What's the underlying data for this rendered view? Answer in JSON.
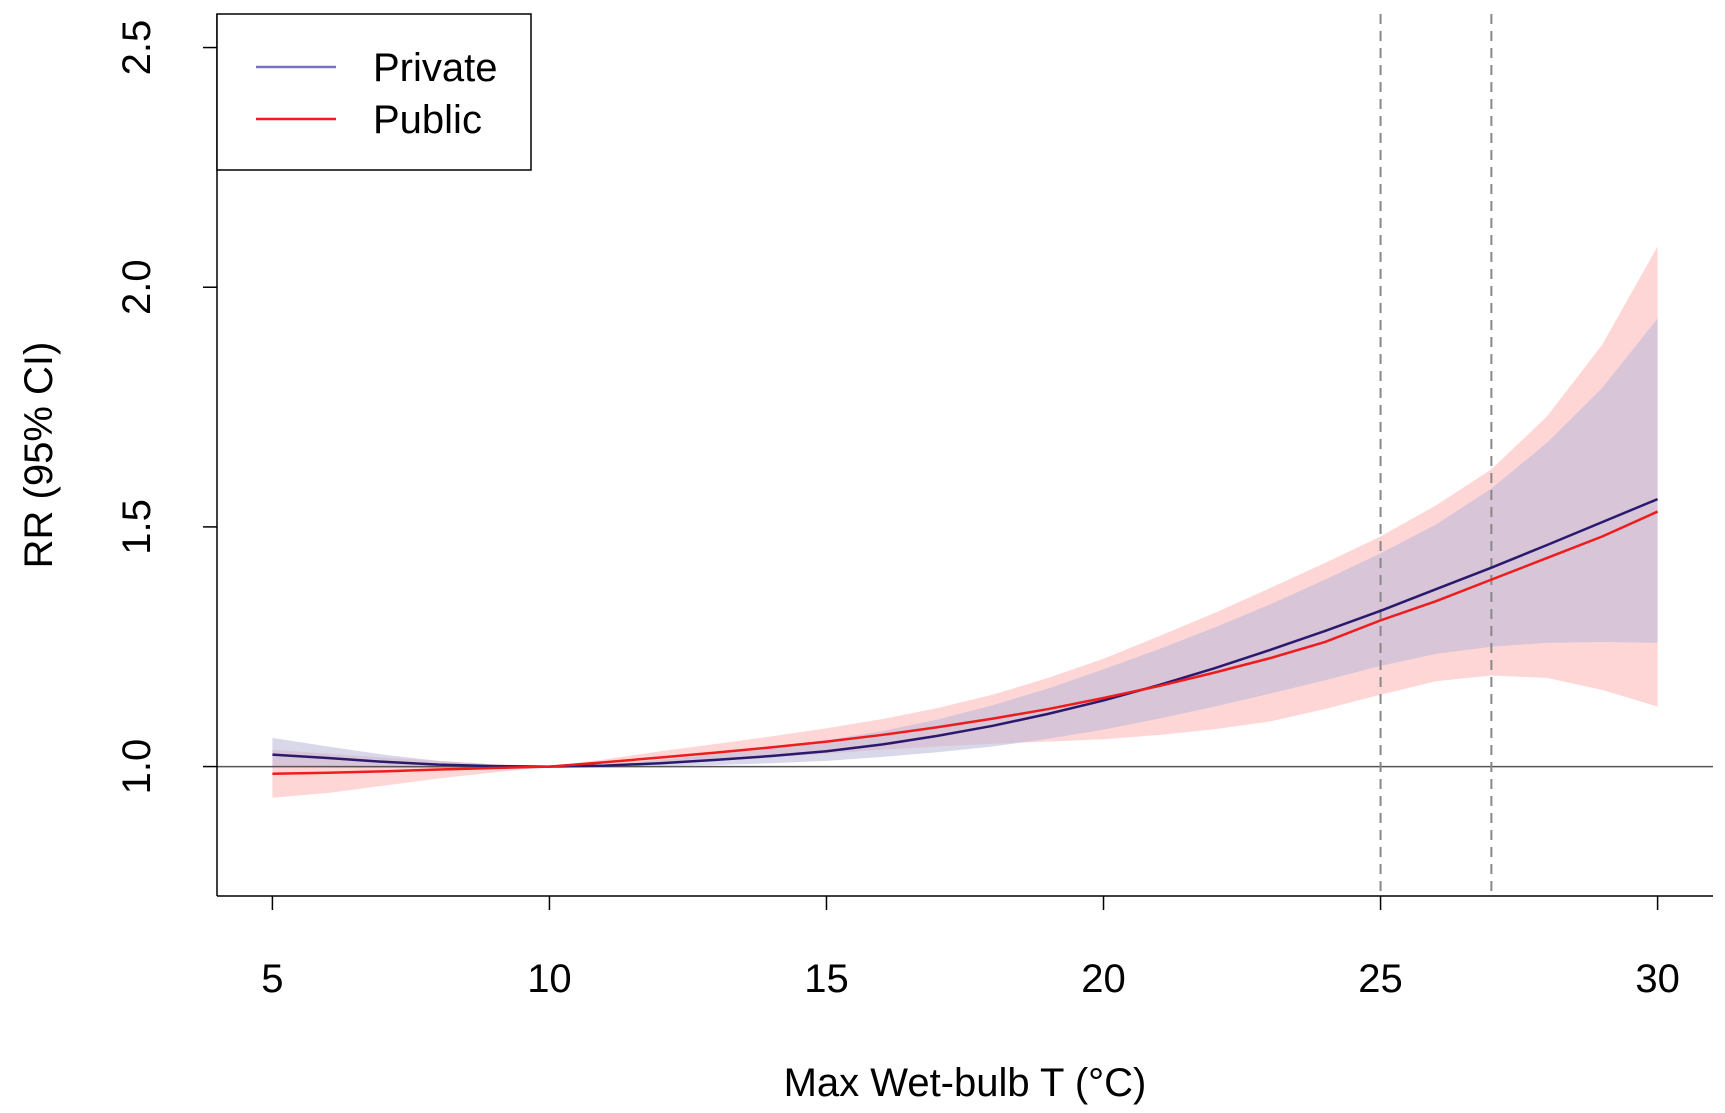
{
  "chart_data": {
    "type": "line",
    "title": "",
    "xlabel": "Max Wet-bulb T (°C)",
    "ylabel": "RR (95% CI)",
    "xlim": [
      4,
      31
    ],
    "ylim": [
      0.73,
      2.57
    ],
    "x_ticks": [
      5,
      10,
      15,
      20,
      25,
      30
    ],
    "x_tick_labels": [
      "5",
      "10",
      "15",
      "20",
      "25",
      "30"
    ],
    "y_ticks": [
      1.0,
      1.5,
      2.0,
      2.5
    ],
    "y_tick_labels": [
      "1.0",
      "1.5",
      "2.0",
      "2.5"
    ],
    "reference_line_y": 1.0,
    "vertical_dashed_lines_x": [
      25,
      27
    ],
    "grid": false,
    "legend_position": "top-left",
    "x": [
      5,
      6,
      7,
      8,
      9,
      10,
      11,
      12,
      13,
      14,
      15,
      16,
      17,
      18,
      19,
      20,
      21,
      22,
      23,
      24,
      25,
      26,
      27,
      28,
      29,
      30
    ],
    "series": [
      {
        "name": "Private",
        "color": "#2a1a6e",
        "band_color": "#b8b8d8",
        "values": [
          1.025,
          1.018,
          1.01,
          1.004,
          1.001,
          1.0,
          1.002,
          1.007,
          1.014,
          1.022,
          1.032,
          1.046,
          1.064,
          1.085,
          1.11,
          1.138,
          1.17,
          1.205,
          1.243,
          1.283,
          1.325,
          1.37,
          1.415,
          1.462,
          1.51,
          1.558
        ],
        "lower": [
          1.0,
          0.998,
          0.997,
          0.997,
          0.998,
          1.0,
          1.0,
          1.001,
          1.003,
          1.007,
          1.012,
          1.02,
          1.03,
          1.042,
          1.058,
          1.077,
          1.1,
          1.125,
          1.152,
          1.18,
          1.21,
          1.235,
          1.25,
          1.258,
          1.26,
          1.258
        ],
        "upper": [
          1.06,
          1.042,
          1.025,
          1.012,
          1.004,
          1.0,
          1.005,
          1.014,
          1.026,
          1.04,
          1.055,
          1.074,
          1.098,
          1.128,
          1.163,
          1.203,
          1.245,
          1.29,
          1.338,
          1.39,
          1.445,
          1.505,
          1.58,
          1.675,
          1.79,
          1.935
        ]
      },
      {
        "name": "Public",
        "color": "#ee1c1c",
        "band_color": "#ffd6d6",
        "values": [
          0.985,
          0.987,
          0.99,
          0.994,
          0.997,
          1.0,
          1.009,
          1.019,
          1.029,
          1.04,
          1.052,
          1.066,
          1.082,
          1.1,
          1.12,
          1.143,
          1.168,
          1.196,
          1.226,
          1.26,
          1.305,
          1.345,
          1.39,
          1.435,
          1.48,
          1.532
        ],
        "lower": [
          0.935,
          0.945,
          0.96,
          0.975,
          0.988,
          1.0,
          1.002,
          1.006,
          1.012,
          1.019,
          1.027,
          1.035,
          1.042,
          1.048,
          1.052,
          1.057,
          1.066,
          1.078,
          1.094,
          1.12,
          1.15,
          1.178,
          1.19,
          1.185,
          1.16,
          1.125
        ],
        "upper": [
          1.035,
          1.027,
          1.019,
          1.012,
          1.005,
          1.0,
          1.015,
          1.032,
          1.047,
          1.063,
          1.08,
          1.099,
          1.122,
          1.15,
          1.185,
          1.225,
          1.272,
          1.32,
          1.372,
          1.425,
          1.48,
          1.545,
          1.62,
          1.73,
          1.88,
          2.085
        ]
      }
    ]
  }
}
